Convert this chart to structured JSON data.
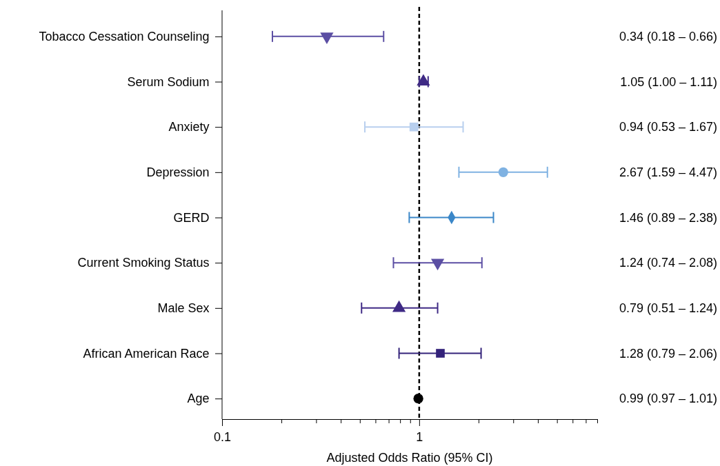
{
  "chart_data": {
    "type": "scatter",
    "orientation": "horizontal",
    "xlabel": "Adjusted Odds Ratio (95% CI)",
    "log": "x",
    "xlim": [
      0.1,
      8
    ],
    "xticks": [
      0.1,
      {
        "value": 0.2,
        "label": null
      },
      {
        "value": 0.3,
        "label": null
      },
      {
        "value": 0.4,
        "label": null
      },
      {
        "value": 0.5,
        "label": null
      },
      {
        "value": 0.6,
        "label": null
      },
      {
        "value": 0.7,
        "label": null
      },
      {
        "value": 0.8,
        "label": null
      },
      {
        "value": 0.9,
        "label": null
      },
      1,
      {
        "value": 2,
        "label": null
      },
      {
        "value": 3,
        "label": null
      },
      {
        "value": 4,
        "label": null
      },
      {
        "value": 5,
        "label": null
      },
      {
        "value": 6,
        "label": null
      },
      {
        "value": 7,
        "label": null
      },
      {
        "value": 8,
        "label": null
      }
    ],
    "categories": [
      "Tobacco Cessation Counseling",
      "Serum Sodium",
      "Anxiety",
      "Depression",
      "GERD",
      "Current Smoking Status",
      "Male Sex",
      "African American Race",
      "Age"
    ],
    "ref_lines": [
      {
        "axis": "x",
        "value": 1,
        "color": "#000000",
        "line_style": "dashed"
      }
    ],
    "annotations": [
      "0.34 (0.18 – 0.66)",
      "1.05 (1.00 – 1.11)",
      "0.94 (0.53 – 1.67)",
      "2.67 (1.59 – 4.47)",
      "1.46 (0.89 – 2.38)",
      "1.24 (0.74 – 2.08)",
      "0.79 (0.51 – 1.24)",
      "1.28 (0.79 – 2.06)",
      "0.99 (0.97 – 1.01)"
    ],
    "series": [
      {
        "color": "#5b4ea3",
        "marker": "triangle-down",
        "values": [
          0.34,
          null,
          null,
          null,
          null,
          null,
          null,
          null,
          null
        ],
        "errors": [
          [
            0.18,
            0.66
          ],
          null,
          null,
          null,
          null,
          null,
          null,
          null,
          null
        ]
      },
      {
        "color": "#3f2a85",
        "marker": "triangle",
        "values": [
          null,
          1.05,
          null,
          null,
          null,
          null,
          null,
          null,
          null
        ],
        "errors": [
          null,
          [
            1.0,
            1.11
          ],
          null,
          null,
          null,
          null,
          null,
          null,
          null
        ]
      },
      {
        "color": "#b8cfee",
        "marker": "square",
        "values": [
          null,
          null,
          0.94,
          null,
          null,
          null,
          null,
          null,
          null
        ],
        "errors": [
          null,
          null,
          [
            0.53,
            1.67
          ],
          null,
          null,
          null,
          null,
          null,
          null
        ]
      },
      {
        "color": "#7fb2e2",
        "marker": "circle",
        "values": [
          null,
          null,
          null,
          2.67,
          null,
          null,
          null,
          null,
          null
        ],
        "errors": [
          null,
          null,
          null,
          [
            1.59,
            4.47
          ],
          null,
          null,
          null,
          null,
          null
        ]
      },
      {
        "color": "#3b87c8",
        "marker": "diamond",
        "values": [
          null,
          null,
          null,
          null,
          1.46,
          null,
          null,
          null,
          null
        ],
        "errors": [
          null,
          null,
          null,
          null,
          [
            0.89,
            2.38
          ],
          null,
          null,
          null,
          null
        ]
      },
      {
        "color": "#5b4ea3",
        "marker": "triangle-down",
        "values": [
          null,
          null,
          null,
          null,
          null,
          1.24,
          null,
          null,
          null
        ],
        "errors": [
          null,
          null,
          null,
          null,
          null,
          [
            0.74,
            2.08
          ],
          null,
          null,
          null
        ]
      },
      {
        "color": "#3f2a85",
        "marker": "triangle",
        "values": [
          null,
          null,
          null,
          null,
          null,
          null,
          0.79,
          null,
          null
        ],
        "errors": [
          null,
          null,
          null,
          null,
          null,
          null,
          [
            0.51,
            1.24
          ],
          null,
          null
        ]
      },
      {
        "color": "#33227a",
        "marker": "square",
        "values": [
          null,
          null,
          null,
          null,
          null,
          null,
          null,
          1.28,
          null
        ],
        "errors": [
          null,
          null,
          null,
          null,
          null,
          null,
          null,
          [
            0.79,
            2.06
          ],
          null
        ]
      },
      {
        "color": "#000000",
        "marker": "circle",
        "values": [
          null,
          null,
          null,
          null,
          null,
          null,
          null,
          null,
          0.99
        ]
      }
    ]
  }
}
